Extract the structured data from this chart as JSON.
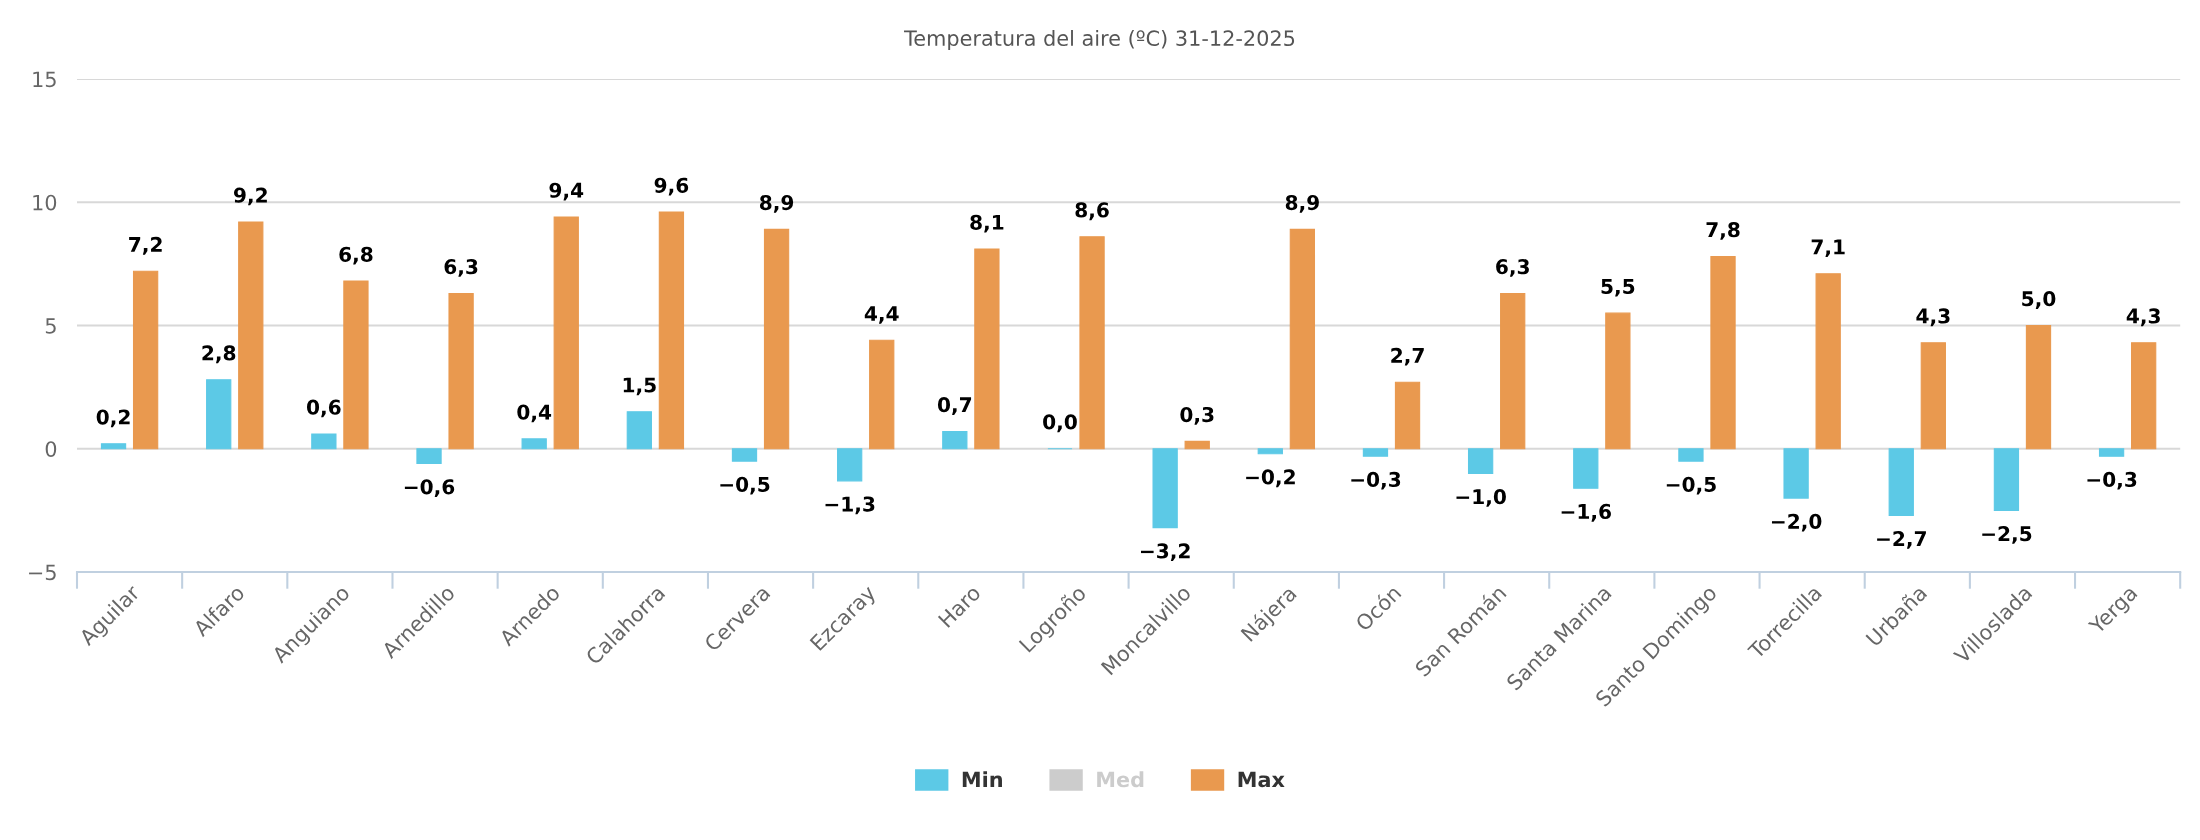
{
  "chart_data": {
    "type": "bar",
    "title": "Temperatura del aire (ºC) 31-12-2025",
    "categories": [
      "Aguilar",
      "Alfaro",
      "Anguiano",
      "Arnedillo",
      "Arnedo",
      "Calahorra",
      "Cervera",
      "Ezcaray",
      "Haro",
      "Logroño",
      "Moncalvillo",
      "Nájera",
      "Ocón",
      "San Román",
      "Santa Marina",
      "Santo Domingo",
      "Torrecilla",
      "Urbaña",
      "Villoslada",
      "Yerga"
    ],
    "series": [
      {
        "name": "Min",
        "color": "#5cc9e6",
        "values": [
          0.2,
          2.8,
          0.6,
          -0.6,
          0.4,
          1.5,
          -0.5,
          -1.3,
          0.7,
          0.0,
          -3.2,
          -0.2,
          -0.3,
          -1.0,
          -1.6,
          -0.5,
          -2.0,
          -2.7,
          -2.5,
          -0.3
        ],
        "value_labels": [
          "0,2",
          "2,8",
          "0,6",
          "−0,6",
          "0,4",
          "1,5",
          "−0,5",
          "−1,3",
          "0,7",
          "0,0",
          "−3,2",
          "−0,2",
          "−0,3",
          "−1,0",
          "−1,6",
          "−0,5",
          "−2,0",
          "−2,7",
          "−2,5",
          "−0,3"
        ]
      },
      {
        "name": "Med",
        "color": "#cccccc",
        "values": [
          null,
          null,
          null,
          null,
          null,
          null,
          null,
          null,
          null,
          null,
          null,
          null,
          null,
          null,
          null,
          null,
          null,
          null,
          null,
          null
        ]
      },
      {
        "name": "Max",
        "color": "#e9994f",
        "values": [
          7.2,
          9.2,
          6.8,
          6.3,
          9.4,
          9.6,
          8.9,
          4.4,
          8.1,
          8.6,
          0.3,
          8.9,
          2.7,
          6.3,
          5.5,
          7.8,
          7.1,
          4.3,
          5.0,
          4.3
        ],
        "value_labels": [
          "7,2",
          "9,2",
          "6,8",
          "6,3",
          "9,4",
          "9,6",
          "8,9",
          "4,4",
          "8,1",
          "8,6",
          "0,3",
          "8,9",
          "2,7",
          "6,3",
          "5,5",
          "7,8",
          "7,1",
          "4,3",
          "5,0",
          "4,3"
        ]
      }
    ],
    "ylim": [
      -5,
      15
    ],
    "yticks": [
      {
        "value": -5,
        "label": "−5"
      },
      0,
      5,
      10,
      15
    ],
    "grid": "y",
    "legend": "bottom"
  }
}
